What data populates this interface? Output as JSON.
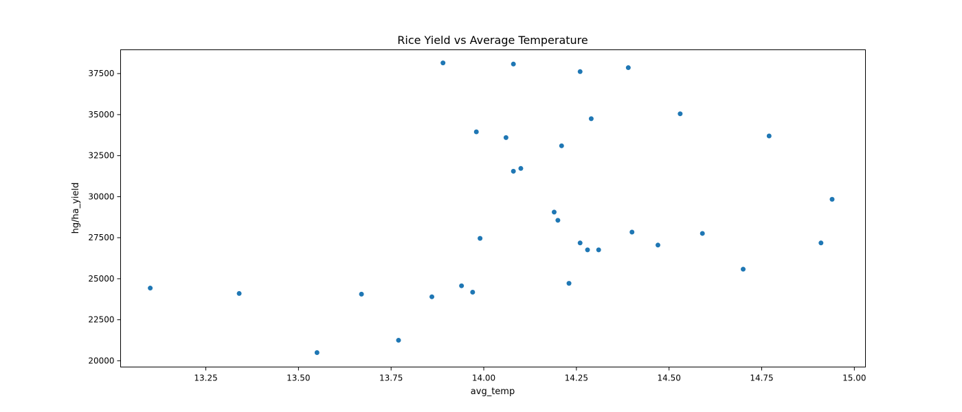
{
  "chart_data": {
    "type": "scatter",
    "title": "Rice Yield vs Average Temperature",
    "xlabel": "avg_temp",
    "ylabel": "hg/ha_yield",
    "xlim": [
      13.02,
      15.03
    ],
    "ylim": [
      19620,
      38950
    ],
    "xticks": [
      13.25,
      13.5,
      13.75,
      14.0,
      14.25,
      14.5,
      14.75,
      15.0
    ],
    "xtick_labels": [
      "13.25",
      "13.50",
      "13.75",
      "14.00",
      "14.25",
      "14.50",
      "14.75",
      "15.00"
    ],
    "yticks": [
      20000,
      22500,
      25000,
      27500,
      30000,
      32500,
      35000,
      37500
    ],
    "ytick_labels": [
      "20000",
      "22500",
      "25000",
      "27500",
      "30000",
      "32500",
      "35000",
      "37500"
    ],
    "grid": false,
    "marker_color": "#1f77b4",
    "points": [
      {
        "x": 13.1,
        "y": 24430
      },
      {
        "x": 13.34,
        "y": 24100
      },
      {
        "x": 13.55,
        "y": 20500
      },
      {
        "x": 13.67,
        "y": 24060
      },
      {
        "x": 13.77,
        "y": 21250
      },
      {
        "x": 13.86,
        "y": 23900
      },
      {
        "x": 13.89,
        "y": 38150
      },
      {
        "x": 13.94,
        "y": 24570
      },
      {
        "x": 13.97,
        "y": 24180
      },
      {
        "x": 13.98,
        "y": 33950
      },
      {
        "x": 13.99,
        "y": 27460
      },
      {
        "x": 14.06,
        "y": 33600
      },
      {
        "x": 14.08,
        "y": 38080
      },
      {
        "x": 14.08,
        "y": 31550
      },
      {
        "x": 14.1,
        "y": 31720
      },
      {
        "x": 14.19,
        "y": 29060
      },
      {
        "x": 14.2,
        "y": 28560
      },
      {
        "x": 14.21,
        "y": 33100
      },
      {
        "x": 14.23,
        "y": 24720
      },
      {
        "x": 14.26,
        "y": 37620
      },
      {
        "x": 14.26,
        "y": 27180
      },
      {
        "x": 14.28,
        "y": 26760
      },
      {
        "x": 14.29,
        "y": 34750
      },
      {
        "x": 14.31,
        "y": 26760
      },
      {
        "x": 14.39,
        "y": 37860
      },
      {
        "x": 14.4,
        "y": 27840
      },
      {
        "x": 14.47,
        "y": 27050
      },
      {
        "x": 14.53,
        "y": 35050
      },
      {
        "x": 14.59,
        "y": 27760
      },
      {
        "x": 14.7,
        "y": 25580
      },
      {
        "x": 14.77,
        "y": 33700
      },
      {
        "x": 14.91,
        "y": 27180
      },
      {
        "x": 14.94,
        "y": 29840
      }
    ]
  }
}
